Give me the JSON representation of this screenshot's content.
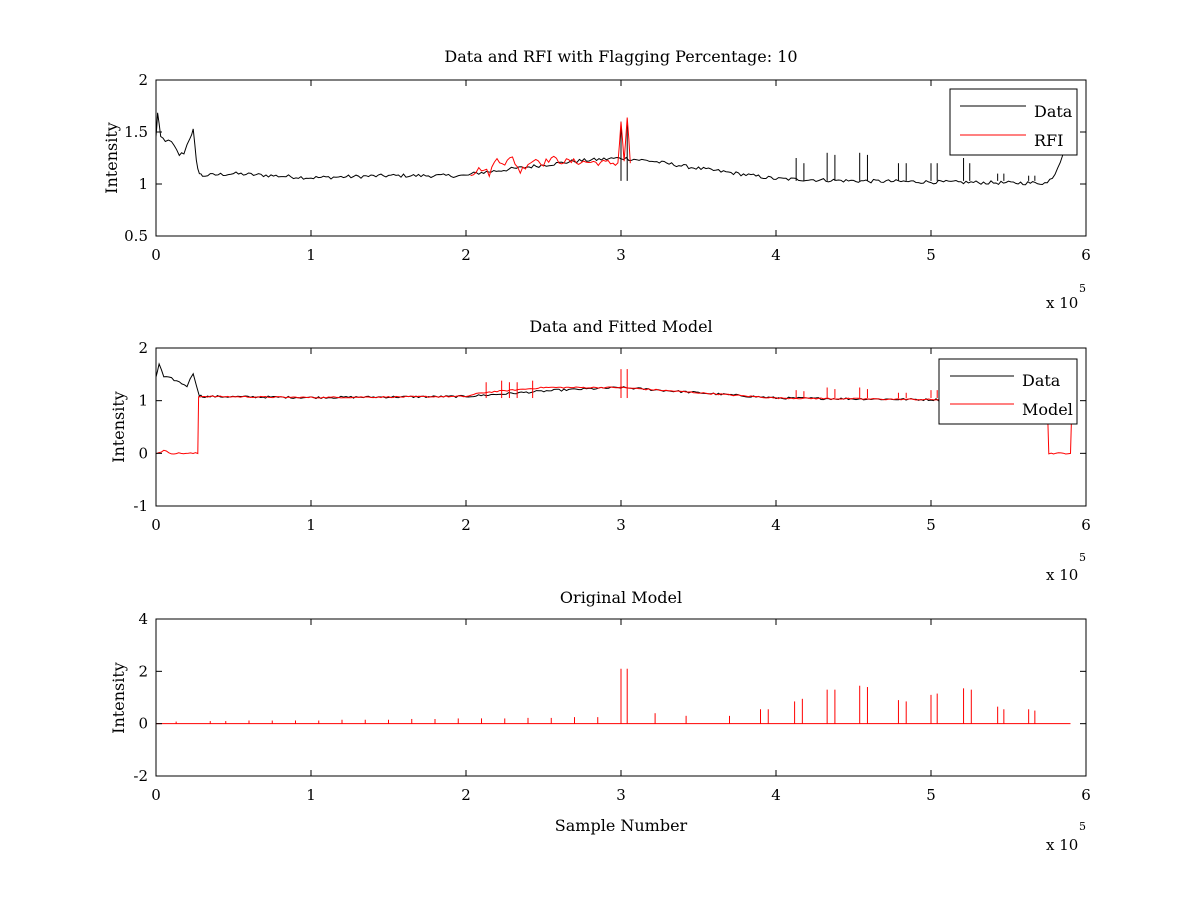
{
  "chart_data": [
    {
      "type": "line",
      "title": "Data and RFI with Flagging Percentage: 10",
      "xlabel": "",
      "ylabel": "Intensity",
      "xlim": [
        0,
        6
      ],
      "ylim": [
        0.5,
        2
      ],
      "x_ticks": [
        "0",
        "1",
        "2",
        "3",
        "4",
        "5",
        "6"
      ],
      "y_ticks": [
        "0.5",
        "1",
        "1.5",
        "2"
      ],
      "x_multiplier_base": "x 10",
      "x_multiplier_exp": "5",
      "legend_position": "top-right",
      "series": [
        {
          "name": "Data",
          "color": "#000000",
          "x": [
            0,
            0.01,
            0.03,
            0.06,
            0.1,
            0.15,
            0.18,
            0.22,
            0.24,
            0.26,
            0.28,
            0.3,
            0.5,
            1.0,
            1.5,
            2.0,
            2.05,
            2.6,
            2.7,
            3.0,
            3.2,
            3.5,
            4.0,
            4.5,
            5.0,
            5.5,
            5.75,
            5.8,
            5.85
          ],
          "y": [
            1.45,
            1.68,
            1.45,
            1.42,
            1.4,
            1.28,
            1.3,
            1.45,
            1.52,
            1.22,
            1.1,
            1.08,
            1.1,
            1.06,
            1.08,
            1.08,
            1.1,
            1.2,
            1.22,
            1.25,
            1.22,
            1.15,
            1.05,
            1.03,
            1.02,
            1.01,
            1.01,
            1.1,
            1.28
          ]
        },
        {
          "name": "RFI",
          "color": "#ff0000",
          "x": [
            2.03,
            2.1,
            2.15,
            2.2,
            2.25,
            2.3,
            2.35,
            2.4,
            2.45,
            2.5,
            2.55,
            2.6,
            2.98,
            3.0,
            3.02,
            3.04,
            3.06
          ],
          "y": [
            1.1,
            1.15,
            1.1,
            1.25,
            1.2,
            1.25,
            1.12,
            1.2,
            1.24,
            1.2,
            1.25,
            1.22,
            1.2,
            1.6,
            1.22,
            1.62,
            1.2
          ]
        }
      ],
      "spikes_data_x": [
        3.0,
        3.04,
        4.13,
        4.18,
        4.33,
        4.38,
        4.54,
        4.59,
        4.79,
        4.84,
        5.0,
        5.04,
        5.21,
        5.25,
        5.43,
        5.47,
        5.63,
        5.67
      ],
      "spikes_data_y": [
        1.6,
        1.6,
        1.25,
        1.2,
        1.3,
        1.28,
        1.3,
        1.28,
        1.2,
        1.2,
        1.2,
        1.2,
        1.25,
        1.2,
        1.1,
        1.1,
        1.08,
        1.08
      ]
    },
    {
      "type": "line",
      "title": "Data and Fitted Model",
      "xlabel": "",
      "ylabel": "Intensity",
      "xlim": [
        0,
        6
      ],
      "ylim": [
        -1,
        2
      ],
      "x_ticks": [
        "0",
        "1",
        "2",
        "3",
        "4",
        "5",
        "6"
      ],
      "y_ticks": [
        "-1",
        "0",
        "1",
        "2"
      ],
      "x_multiplier_base": "x 10",
      "x_multiplier_exp": "5",
      "legend_position": "top-right",
      "series": [
        {
          "name": "Data",
          "color": "#000000",
          "x": [
            0,
            0.02,
            0.05,
            0.1,
            0.15,
            0.2,
            0.24,
            0.28,
            0.3,
            1.0,
            2.0,
            2.6,
            3.0,
            3.5,
            4.0,
            5.0,
            5.8,
            5.85
          ],
          "y": [
            1.45,
            1.7,
            1.45,
            1.42,
            1.35,
            1.28,
            1.52,
            1.1,
            1.08,
            1.06,
            1.08,
            1.2,
            1.25,
            1.15,
            1.05,
            1.02,
            1.01,
            1.2
          ]
        },
        {
          "name": "Model",
          "color": "#ff0000",
          "x": [
            0,
            0.05,
            0.1,
            0.27,
            0.275,
            0.3,
            1.0,
            2.0,
            2.1,
            2.3,
            2.5,
            3.0,
            3.5,
            4.0,
            5.0,
            5.75,
            5.76,
            5.9,
            5.91
          ],
          "y": [
            0.0,
            0.05,
            0.0,
            0.0,
            1.08,
            1.08,
            1.06,
            1.08,
            1.15,
            1.2,
            1.25,
            1.25,
            1.15,
            1.05,
            1.02,
            1.02,
            0.0,
            0.0,
            1.05
          ]
        }
      ],
      "spikes_model_x": [
        2.13,
        2.23,
        2.28,
        2.33,
        2.43,
        3.0,
        3.04,
        4.13,
        4.18,
        4.33,
        4.38,
        4.54,
        4.59,
        4.79,
        4.84,
        5.0,
        5.04
      ],
      "spikes_model_y": [
        1.35,
        1.38,
        1.35,
        1.35,
        1.38,
        1.6,
        1.6,
        1.2,
        1.18,
        1.25,
        1.22,
        1.25,
        1.22,
        1.15,
        1.15,
        1.2,
        1.2
      ]
    },
    {
      "type": "line",
      "title": "Original Model",
      "xlabel": "Sample Number",
      "ylabel": "Intensity",
      "xlim": [
        0,
        6
      ],
      "ylim": [
        -2,
        4
      ],
      "x_ticks": [
        "0",
        "1",
        "2",
        "3",
        "4",
        "5",
        "6"
      ],
      "y_ticks": [
        "-2",
        "0",
        "2",
        "4"
      ],
      "x_multiplier_base": "x 10",
      "x_multiplier_exp": "5",
      "series": [
        {
          "color": "#ff0000",
          "baseline_x_range": [
            0,
            5.9
          ],
          "baseline_y": 0.0,
          "spike_x": [
            0.13,
            0.35,
            0.45,
            0.6,
            0.75,
            0.9,
            1.05,
            1.2,
            1.35,
            1.5,
            1.65,
            1.8,
            1.95,
            2.1,
            2.25,
            2.4,
            2.55,
            2.7,
            2.85,
            3.0,
            3.04,
            3.22,
            3.42,
            3.7,
            3.9,
            3.95,
            4.12,
            4.17,
            4.33,
            4.38,
            4.54,
            4.59,
            4.79,
            4.84,
            5.0,
            5.04,
            5.21,
            5.26,
            5.43,
            5.47,
            5.63,
            5.67
          ],
          "spike_y": [
            0.08,
            0.1,
            0.1,
            0.12,
            0.12,
            0.12,
            0.12,
            0.15,
            0.15,
            0.15,
            0.18,
            0.18,
            0.2,
            0.2,
            0.2,
            0.22,
            0.22,
            0.25,
            0.25,
            2.1,
            2.1,
            0.4,
            0.3,
            0.3,
            0.55,
            0.55,
            0.85,
            0.95,
            1.3,
            1.3,
            1.45,
            1.4,
            0.9,
            0.85,
            1.1,
            1.15,
            1.35,
            1.3,
            0.65,
            0.55,
            0.55,
            0.5
          ]
        }
      ]
    }
  ]
}
